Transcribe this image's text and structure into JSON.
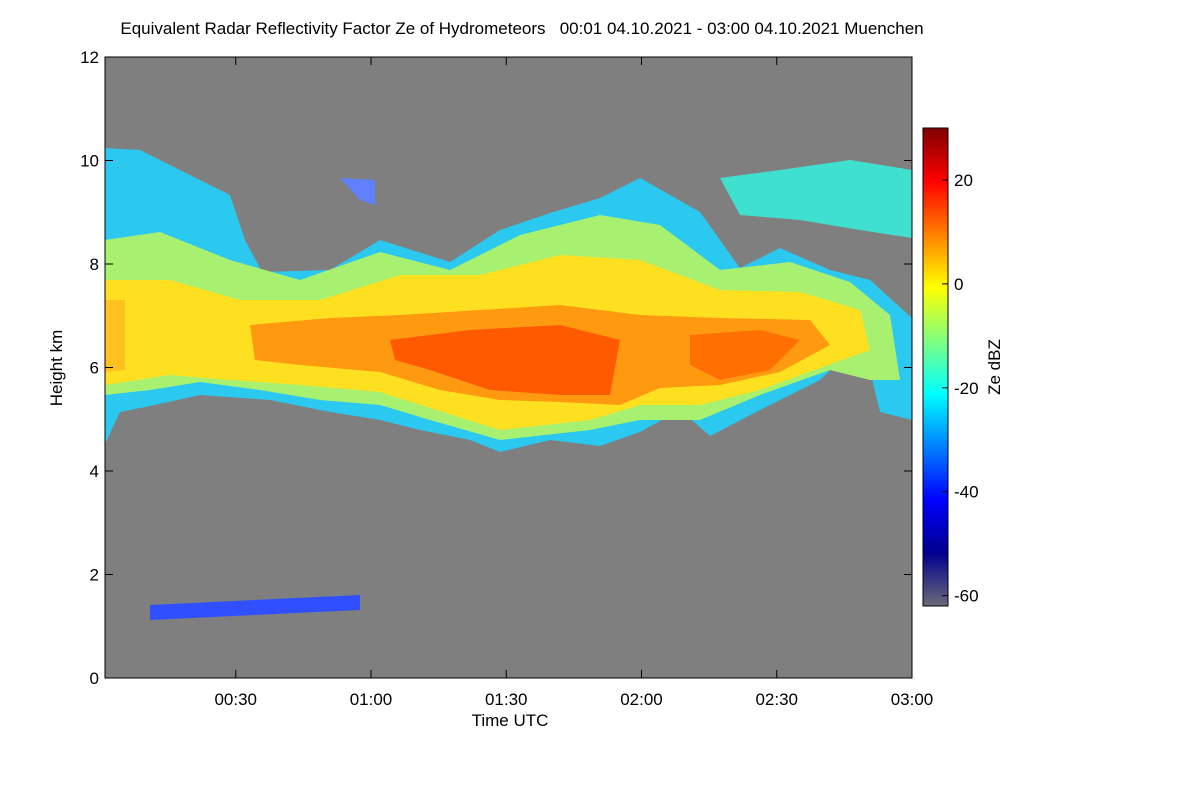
{
  "chart_data": {
    "type": "heatmap",
    "title": "Equivalent Radar Reflectivity Factor Ze of Hydrometeors   00:01 04.10.2021 - 03:00 04.10.2021 Muenchen",
    "xlabel": "Time UTC",
    "ylabel": "Height km",
    "xlim": [
      1,
      180
    ],
    "xticks": [
      {
        "value": 30,
        "label": "00:30"
      },
      {
        "value": 60,
        "label": "01:00"
      },
      {
        "value": 90,
        "label": "01:30"
      },
      {
        "value": 120,
        "label": "02:00"
      },
      {
        "value": 150,
        "label": "02:30"
      },
      {
        "value": 180,
        "label": "03:00"
      }
    ],
    "ylim": [
      0,
      12
    ],
    "yticks": [
      0,
      2,
      4,
      6,
      8,
      10,
      12
    ],
    "colorbar": {
      "label": "Ze dBZ",
      "lim": [
        -62,
        30
      ],
      "ticks": [
        20,
        0,
        -20,
        -40,
        -60
      ],
      "colormap": [
        "#6a6a7a",
        "#00008f",
        "#0000ff",
        "#0080ff",
        "#00ffff",
        "#80ff80",
        "#ffff00",
        "#ff8000",
        "#ff0000",
        "#800000"
      ]
    }
  }
}
